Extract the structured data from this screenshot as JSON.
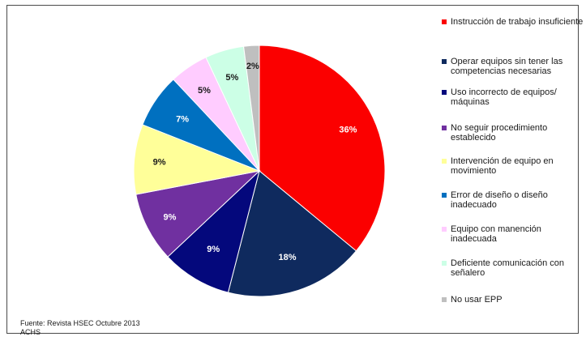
{
  "chart_data": {
    "type": "pie",
    "slices": [
      {
        "label": "Instrucción de trabajo insuficiente",
        "value": 36,
        "value_label": "36%",
        "color": "#fb0000",
        "label_color": "#ffffff"
      },
      {
        "label": "Operar equipos sin tener las competencias necesarias",
        "value": 18,
        "value_label": "18%",
        "color": "#0f2a5e",
        "label_color": "#ffffff"
      },
      {
        "label": "Uso incorrecto de equipos/ máquinas",
        "value": 9,
        "value_label": "9%",
        "color": "#04087c",
        "label_color": "#ffffff"
      },
      {
        "label": "No seguir procedimiento establecido",
        "value": 9,
        "value_label": "9%",
        "color": "#7030a0",
        "label_color": "#ffffff"
      },
      {
        "label": "Intervención de equipo en movimiento",
        "value": 9,
        "value_label": "9%",
        "color": "#ffff99",
        "label_color": "#1a1a1a"
      },
      {
        "label": "Error de diseño o diseño inadecuado",
        "value": 7,
        "value_label": "7%",
        "color": "#0070c0",
        "label_color": "#ffffff"
      },
      {
        "label": "Equipo con manención inadecuada",
        "value": 5,
        "value_label": "5%",
        "color": "#ffccff",
        "label_color": "#1a1a1a"
      },
      {
        "label": "Deficiente comunicación con señalero",
        "value": 5,
        "value_label": "5%",
        "color": "#ccffe6",
        "label_color": "#1a1a1a"
      },
      {
        "label": "No usar EPP",
        "value": 2,
        "value_label": "2%",
        "color": "#bfbfbf",
        "label_color": "#1a1a1a"
      }
    ],
    "legend_position": "right"
  },
  "source": {
    "line1": "Fuente: Revista HSEC Octubre 2013",
    "line2": "ACHS"
  }
}
